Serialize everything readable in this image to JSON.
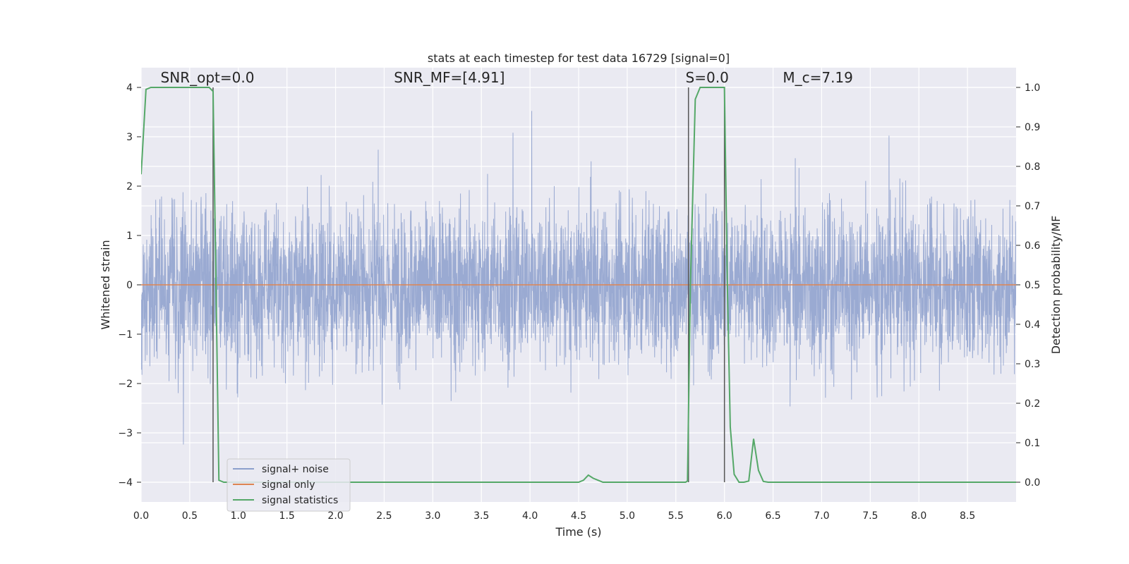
{
  "chart_data": {
    "type": "line",
    "title": "stats at each timestep for test data 16729 [signal=0]",
    "xlabel": "Time (s)",
    "ylabel": "Whitened strain",
    "ylabel_right": "Detection probability/MF",
    "xlim": [
      0,
      9.0
    ],
    "ylim": [
      -4.4,
      4.4
    ],
    "ylim_right": [
      -0.05,
      1.05
    ],
    "x_ticks": [
      "0.0",
      "0.5",
      "1.0",
      "1.5",
      "2.0",
      "2.5",
      "3.0",
      "3.5",
      "4.0",
      "4.5",
      "5.0",
      "5.5",
      "6.0",
      "6.5",
      "7.0",
      "7.5",
      "8.0",
      "8.5"
    ],
    "y_ticks": [
      "−4",
      "−3",
      "−2",
      "−1",
      "0",
      "1",
      "2",
      "3",
      "4"
    ],
    "y_ticks_right": [
      "0.0",
      "0.1",
      "0.2",
      "0.3",
      "0.4",
      "0.5",
      "0.6",
      "0.7",
      "0.8",
      "0.9",
      "1.0"
    ],
    "grid": true,
    "legend_position": "lower-left",
    "annotations": [
      {
        "text": "SNR_opt=0.0",
        "x": 0.2,
        "y": 4.1
      },
      {
        "text": "SNR_MF=[4.91]",
        "x": 2.6,
        "y": 4.1
      },
      {
        "text": "S=0.0",
        "x": 5.6,
        "y": 4.1
      },
      {
        "text": "M_c=7.19",
        "x": 6.6,
        "y": 4.1
      }
    ],
    "vertical_lines": [
      0.74,
      5.63,
      6.0
    ],
    "series": [
      {
        "name": "signal+ noise",
        "color": "#8c9fcc",
        "description": "whitened noise, amplitude about ±1.5 to ±3",
        "duration": 9.0
      },
      {
        "name": "signal only",
        "color": "#dd8452",
        "values_constant": 0
      },
      {
        "name": "signal statistics",
        "color": "#55a868",
        "axis": "right",
        "x": [
          0.0,
          0.05,
          0.1,
          0.15,
          0.2,
          0.3,
          0.4,
          0.5,
          0.6,
          0.65,
          0.7,
          0.74,
          0.77,
          0.8,
          0.85,
          0.9,
          1.0,
          2.0,
          3.0,
          4.0,
          4.5,
          4.55,
          4.6,
          4.65,
          4.7,
          4.75,
          5.0,
          5.5,
          5.6,
          5.62,
          5.65,
          5.7,
          5.75,
          5.8,
          5.9,
          5.95,
          6.0,
          6.03,
          6.06,
          6.1,
          6.15,
          6.2,
          6.25,
          6.3,
          6.35,
          6.4,
          6.45,
          7.0,
          8.0,
          9.0
        ],
        "y": [
          0.78,
          0.995,
          1.0,
          1.0,
          1.0,
          1.0,
          1.0,
          1.0,
          1.0,
          1.0,
          1.0,
          0.99,
          0.5,
          0.005,
          0.0,
          0.0,
          0.0,
          0.0,
          0.0,
          0.0,
          0.0,
          0.005,
          0.018,
          0.01,
          0.005,
          0.0,
          0.0,
          0.0,
          0.0,
          0.003,
          0.5,
          0.97,
          1.0,
          1.0,
          1.0,
          1.0,
          1.0,
          0.5,
          0.14,
          0.02,
          0.0,
          0.0,
          0.003,
          0.11,
          0.03,
          0.002,
          0.0,
          0.0,
          0.0,
          0.0
        ]
      }
    ]
  }
}
